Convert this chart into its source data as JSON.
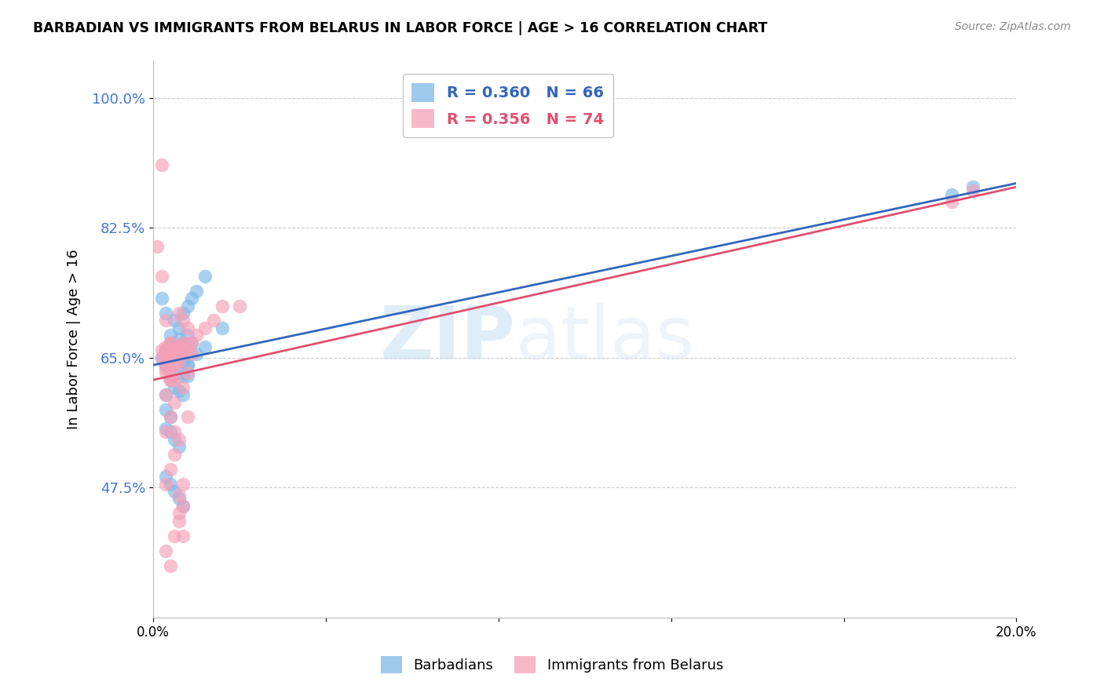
{
  "title": "BARBADIAN VS IMMIGRANTS FROM BELARUS IN LABOR FORCE | AGE > 16 CORRELATION CHART",
  "source": "Source: ZipAtlas.com",
  "ylabel_label": "In Labor Force | Age > 16",
  "xlim": [
    0.0,
    0.2
  ],
  "ylim": [
    0.3,
    1.05
  ],
  "xticks": [
    0.0,
    0.04,
    0.08,
    0.12,
    0.16,
    0.2
  ],
  "xticklabels": [
    "0.0%",
    "",
    "",
    "",
    "",
    "20.0%"
  ],
  "ytick_positions": [
    0.475,
    0.65,
    0.825,
    1.0
  ],
  "ytick_labels": [
    "47.5%",
    "65.0%",
    "82.5%",
    "100.0%"
  ],
  "blue_color": "#7db8e8",
  "pink_color": "#f5a0b8",
  "blue_line_color": "#3366bb",
  "pink_line_color": "#e05070",
  "blue_R": 0.36,
  "blue_N": 66,
  "pink_R": 0.356,
  "pink_N": 74,
  "watermark_zip": "ZIP",
  "watermark_atlas": "atlas",
  "legend_label_blue": "Barbadians",
  "legend_label_pink": "Immigrants from Belarus",
  "blue_line_x0": 0.0,
  "blue_line_y0": 0.64,
  "blue_line_x1": 0.2,
  "blue_line_y1": 0.885,
  "pink_line_x0": 0.0,
  "pink_line_y0": 0.62,
  "pink_line_x1": 0.2,
  "pink_line_y1": 0.88,
  "blue_scatter_x": [
    0.002,
    0.003,
    0.004,
    0.005,
    0.006,
    0.007,
    0.008,
    0.003,
    0.004,
    0.005,
    0.006,
    0.003,
    0.004,
    0.005,
    0.006,
    0.007,
    0.004,
    0.003,
    0.002,
    0.004,
    0.005,
    0.006,
    0.003,
    0.004,
    0.005,
    0.007,
    0.008,
    0.01,
    0.012,
    0.009,
    0.006,
    0.005,
    0.004,
    0.003,
    0.006,
    0.007,
    0.008,
    0.004,
    0.003,
    0.005,
    0.006,
    0.007,
    0.003,
    0.004,
    0.003,
    0.004,
    0.005,
    0.006,
    0.003,
    0.004,
    0.005,
    0.006,
    0.007,
    0.008,
    0.003,
    0.004,
    0.006,
    0.005,
    0.007,
    0.008,
    0.009,
    0.01,
    0.012,
    0.016,
    0.185,
    0.19
  ],
  "blue_scatter_y": [
    0.73,
    0.71,
    0.68,
    0.665,
    0.66,
    0.67,
    0.68,
    0.65,
    0.655,
    0.66,
    0.665,
    0.64,
    0.645,
    0.65,
    0.655,
    0.66,
    0.67,
    0.66,
    0.65,
    0.66,
    0.655,
    0.66,
    0.64,
    0.645,
    0.65,
    0.645,
    0.64,
    0.655,
    0.665,
    0.67,
    0.675,
    0.665,
    0.66,
    0.64,
    0.63,
    0.625,
    0.625,
    0.62,
    0.6,
    0.61,
    0.605,
    0.6,
    0.58,
    0.57,
    0.555,
    0.55,
    0.54,
    0.53,
    0.49,
    0.48,
    0.47,
    0.46,
    0.45,
    0.64,
    0.66,
    0.65,
    0.69,
    0.7,
    0.71,
    0.72,
    0.73,
    0.74,
    0.76,
    0.69,
    0.87,
    0.88
  ],
  "pink_scatter_x": [
    0.001,
    0.002,
    0.003,
    0.004,
    0.005,
    0.006,
    0.003,
    0.004,
    0.005,
    0.006,
    0.002,
    0.003,
    0.007,
    0.008,
    0.009,
    0.003,
    0.004,
    0.005,
    0.006,
    0.004,
    0.003,
    0.002,
    0.004,
    0.005,
    0.003,
    0.004,
    0.005,
    0.007,
    0.008,
    0.006,
    0.005,
    0.004,
    0.003,
    0.006,
    0.007,
    0.004,
    0.003,
    0.005,
    0.006,
    0.007,
    0.003,
    0.004,
    0.005,
    0.006,
    0.007,
    0.008,
    0.004,
    0.005,
    0.006,
    0.003,
    0.004,
    0.005,
    0.006,
    0.007,
    0.003,
    0.004,
    0.005,
    0.006,
    0.008,
    0.01,
    0.012,
    0.014,
    0.002,
    0.003,
    0.004,
    0.005,
    0.006,
    0.007,
    0.008,
    0.009,
    0.016,
    0.02,
    0.185,
    0.19
  ],
  "pink_scatter_y": [
    0.8,
    0.91,
    0.65,
    0.64,
    0.66,
    0.665,
    0.635,
    0.645,
    0.64,
    0.66,
    0.76,
    0.7,
    0.7,
    0.69,
    0.67,
    0.48,
    0.5,
    0.52,
    0.54,
    0.62,
    0.63,
    0.65,
    0.67,
    0.64,
    0.55,
    0.57,
    0.59,
    0.61,
    0.63,
    0.71,
    0.62,
    0.62,
    0.6,
    0.465,
    0.48,
    0.37,
    0.39,
    0.41,
    0.43,
    0.45,
    0.65,
    0.63,
    0.55,
    0.44,
    0.41,
    0.57,
    0.64,
    0.65,
    0.665,
    0.66,
    0.655,
    0.65,
    0.645,
    0.655,
    0.64,
    0.645,
    0.65,
    0.655,
    0.67,
    0.68,
    0.69,
    0.7,
    0.66,
    0.665,
    0.67,
    0.66,
    0.665,
    0.67,
    0.66,
    0.655,
    0.72,
    0.72,
    0.86,
    0.875
  ]
}
